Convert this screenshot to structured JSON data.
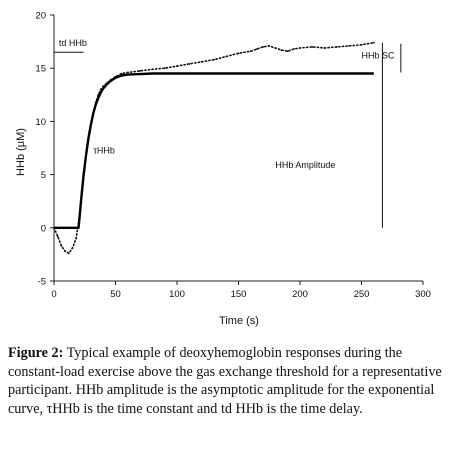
{
  "chart_data": {
    "type": "line",
    "xlabel": "Time (s)",
    "ylabel": "HHb (μM)",
    "xlim": [
      0,
      300
    ],
    "ylim": [
      -5,
      20
    ],
    "xticks": [
      0,
      50,
      100,
      150,
      200,
      250,
      300
    ],
    "yticks": [
      -5,
      0,
      5,
      10,
      15,
      20
    ],
    "grid": false,
    "series": [
      {
        "style": "dotted",
        "x": [
          0,
          3,
          6,
          9,
          12,
          15,
          18,
          20,
          22,
          24,
          26,
          28,
          30,
          32,
          34,
          36,
          38,
          40,
          43,
          46,
          50,
          55,
          60,
          70,
          80,
          90,
          100,
          110,
          120,
          130,
          140,
          150,
          160,
          165,
          170,
          175,
          180,
          185,
          190,
          195,
          200,
          210,
          220,
          230,
          240,
          250,
          260
        ],
        "y": [
          0,
          -0.8,
          -1.7,
          -2.2,
          -2.4,
          -1.9,
          -1.0,
          0.5,
          2.5,
          4.6,
          6.6,
          8.2,
          9.6,
          10.8,
          11.8,
          12.5,
          13.0,
          13.3,
          13.6,
          13.9,
          14.2,
          14.5,
          14.6,
          14.75,
          14.9,
          15.0,
          15.2,
          15.4,
          15.6,
          15.8,
          16.1,
          16.4,
          16.6,
          16.8,
          17.0,
          17.1,
          16.9,
          16.7,
          16.6,
          16.8,
          16.9,
          17.0,
          16.9,
          17.0,
          17.1,
          17.2,
          17.4
        ]
      },
      {
        "style": "solid",
        "x": [
          0,
          20,
          22,
          24,
          26,
          28,
          30,
          32,
          34,
          36,
          38,
          40,
          43,
          46,
          50,
          55,
          60,
          70,
          80,
          100,
          150,
          200,
          260
        ],
        "y": [
          0,
          0,
          2.6,
          4.9,
          6.8,
          8.4,
          9.7,
          10.8,
          11.6,
          12.2,
          12.7,
          13.1,
          13.5,
          13.8,
          14.1,
          14.3,
          14.4,
          14.45,
          14.5,
          14.5,
          14.5,
          14.5,
          14.5
        ]
      }
    ],
    "annotations": [
      {
        "label": "td HHb",
        "x": 4,
        "y": 17.1
      },
      {
        "label": "τHHb",
        "x": 32,
        "y": 7.0
      },
      {
        "label": "HHb Amplitude",
        "x": 180,
        "y": 5.6
      },
      {
        "label": "HHb SC",
        "x": 250,
        "y": 15.9
      }
    ]
  },
  "caption": {
    "lead": "Figure 2:",
    "text": " Typical example of deoxyhemoglobin responses during the constant-load exercise above the gas exchange threshold for a representative participant. HHb amplitude is the asymptotic amplitude for the exponential curve, τHHb is the time constant and td HHb is the time delay."
  }
}
